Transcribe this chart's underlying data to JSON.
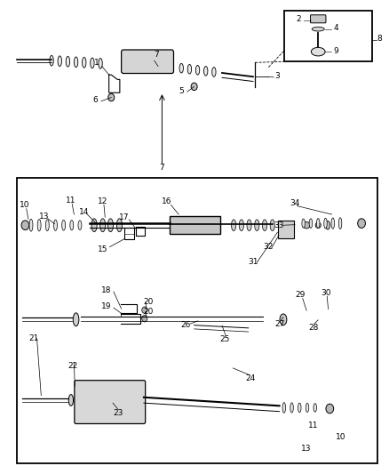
{
  "bg_color": "#ffffff",
  "line_color": "#000000",
  "fig_width": 4.39,
  "fig_height": 5.33,
  "dpi": 100,
  "font_size": 6.5
}
